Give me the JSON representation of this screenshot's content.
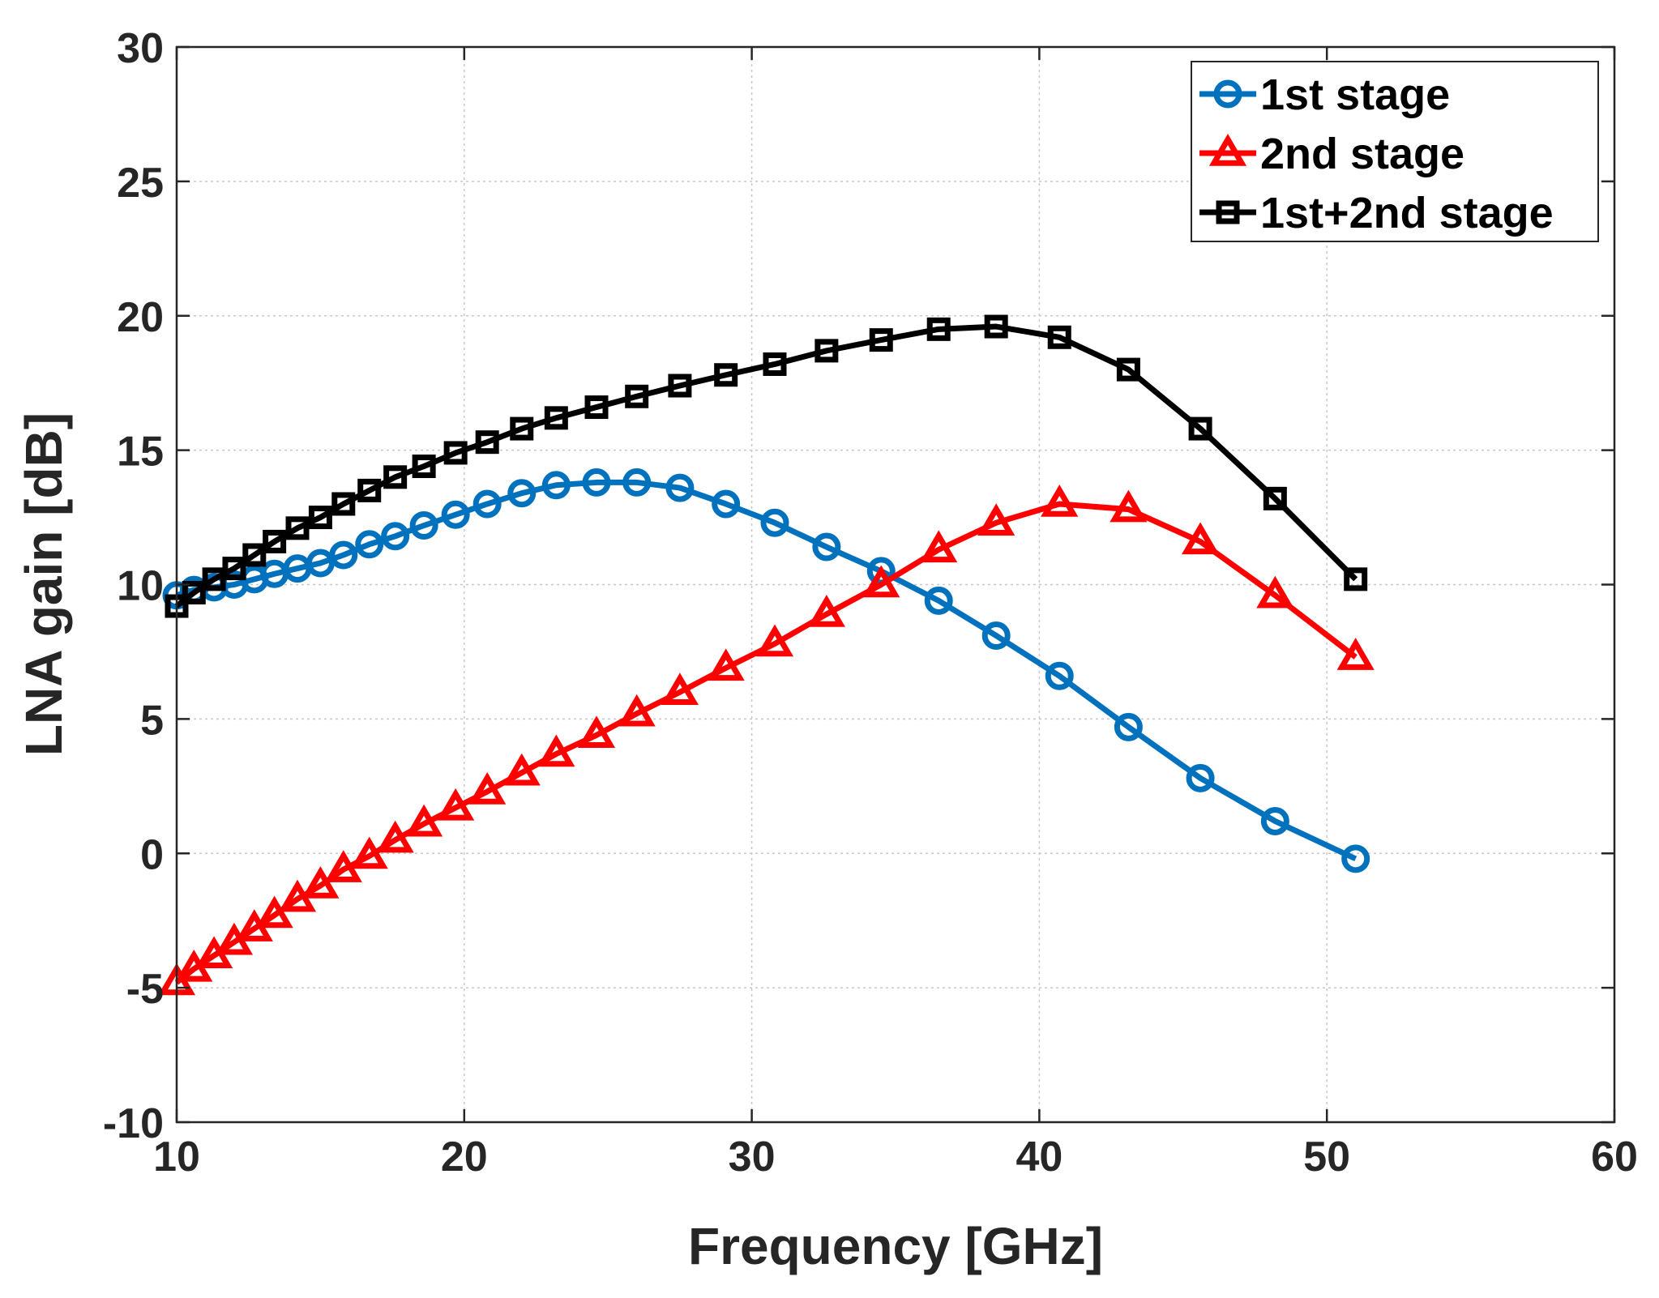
{
  "chart_data": {
    "type": "line",
    "xlabel": "Frequency [GHz]",
    "ylabel": "LNA gain [dB]",
    "xlim": [
      10,
      60
    ],
    "ylim": [
      -10,
      30
    ],
    "xticks": [
      10,
      20,
      30,
      40,
      50,
      60
    ],
    "yticks": [
      -10,
      -5,
      0,
      5,
      10,
      15,
      20,
      25,
      30
    ],
    "grid": true,
    "legend_position": "top-right",
    "series": [
      {
        "name": "1st stage",
        "color": "#0072BD",
        "marker": "circle",
        "x": [
          10.0,
          10.6,
          11.3,
          12.0,
          12.7,
          13.4,
          14.2,
          15.0,
          15.8,
          16.7,
          17.6,
          18.6,
          19.7,
          20.8,
          22.0,
          23.2,
          24.6,
          26.0,
          27.5,
          29.1,
          30.8,
          32.6,
          34.5,
          36.5,
          38.5,
          40.7,
          43.1,
          45.6,
          48.2,
          51.0
        ],
        "y": [
          9.6,
          9.8,
          9.9,
          10.0,
          10.2,
          10.4,
          10.6,
          10.8,
          11.1,
          11.5,
          11.8,
          12.2,
          12.6,
          13.0,
          13.4,
          13.7,
          13.8,
          13.8,
          13.6,
          13.0,
          12.3,
          11.4,
          10.5,
          9.4,
          8.1,
          6.6,
          4.7,
          2.8,
          1.2,
          -0.2
        ]
      },
      {
        "name": "2nd stage",
        "color": "#FF0000",
        "marker": "triangle",
        "x": [
          10.0,
          10.6,
          11.3,
          12.0,
          12.7,
          13.4,
          14.2,
          15.0,
          15.8,
          16.7,
          17.6,
          18.6,
          19.7,
          20.8,
          22.0,
          23.2,
          24.6,
          26.0,
          27.5,
          29.1,
          30.8,
          32.6,
          34.5,
          36.5,
          38.5,
          40.7,
          43.1,
          45.6,
          48.2,
          51.0
        ],
        "y": [
          -4.8,
          -4.3,
          -3.8,
          -3.3,
          -2.8,
          -2.3,
          -1.7,
          -1.2,
          -0.6,
          -0.1,
          0.5,
          1.1,
          1.7,
          2.3,
          3.0,
          3.7,
          4.4,
          5.2,
          6.0,
          6.9,
          7.8,
          8.9,
          10.0,
          11.3,
          12.3,
          13.0,
          12.8,
          11.6,
          9.6,
          7.3
        ]
      },
      {
        "name": "1st+2nd stage",
        "color": "#000000",
        "marker": "square",
        "x": [
          10.0,
          10.6,
          11.3,
          12.0,
          12.7,
          13.4,
          14.2,
          15.0,
          15.8,
          16.7,
          17.6,
          18.6,
          19.7,
          20.8,
          22.0,
          23.2,
          24.6,
          26.0,
          27.5,
          29.1,
          30.8,
          32.6,
          34.5,
          36.5,
          38.5,
          40.7,
          43.1,
          45.6,
          48.2,
          51.0
        ],
        "y": [
          9.2,
          9.7,
          10.2,
          10.6,
          11.1,
          11.6,
          12.1,
          12.5,
          13.0,
          13.5,
          14.0,
          14.4,
          14.9,
          15.3,
          15.8,
          16.2,
          16.6,
          17.0,
          17.4,
          17.8,
          18.2,
          18.7,
          19.1,
          19.5,
          19.6,
          19.2,
          18.0,
          15.8,
          13.2,
          10.2
        ]
      }
    ]
  }
}
